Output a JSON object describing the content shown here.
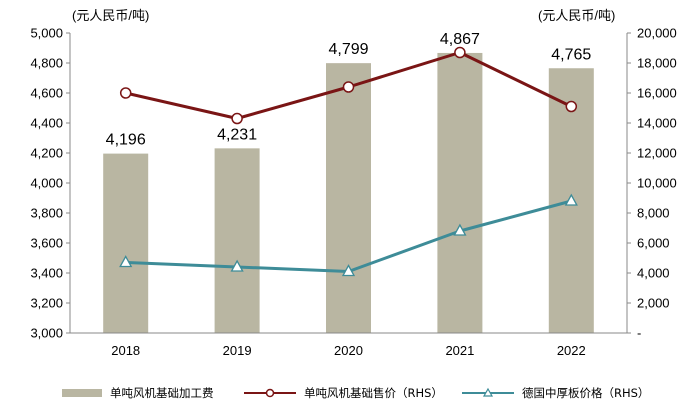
{
  "chart_data": {
    "type": "bar+line",
    "categories": [
      "2018",
      "2019",
      "2020",
      "2021",
      "2022"
    ],
    "bars": {
      "name": "单吨风机基础加工费",
      "values": [
        4196,
        4231,
        4799,
        4867,
        4765
      ],
      "labels": [
        "4,196",
        "4,231",
        "4,799",
        "4,867",
        "4,765"
      ],
      "color": "#b9b6a2"
    },
    "lines": [
      {
        "name": "单吨风机基础售价（RHS）",
        "values": [
          16000,
          14300,
          16400,
          18700,
          15100
        ],
        "color": "#7a1515",
        "marker": "circle"
      },
      {
        "name": "德国中厚板价格（RHS）",
        "values": [
          4700,
          4400,
          4100,
          6800,
          8800
        ],
        "color": "#3e8c98",
        "marker": "triangle"
      }
    ],
    "y_left": {
      "unit": "(元人民币/吨)",
      "min": 3000,
      "max": 5000,
      "ticks": [
        3000,
        3200,
        3400,
        3600,
        3800,
        4000,
        4200,
        4400,
        4600,
        4800,
        5000
      ],
      "tick_labels": [
        "3,000",
        "3,200",
        "3,400",
        "3,600",
        "3,800",
        "4,000",
        "4,200",
        "4,400",
        "4,600",
        "4,800",
        "5,000"
      ]
    },
    "y_right": {
      "unit": "(元人民币/吨)",
      "min": 0,
      "max": 20000,
      "ticks": [
        0,
        2000,
        4000,
        6000,
        8000,
        10000,
        12000,
        14000,
        16000,
        18000,
        20000
      ],
      "tick_labels": [
        "-",
        "2,000",
        "4,000",
        "6,000",
        "8,000",
        "10,000",
        "12,000",
        "14,000",
        "16,000",
        "18,000",
        "20,000"
      ]
    },
    "grid": false,
    "legend_position": "bottom"
  }
}
